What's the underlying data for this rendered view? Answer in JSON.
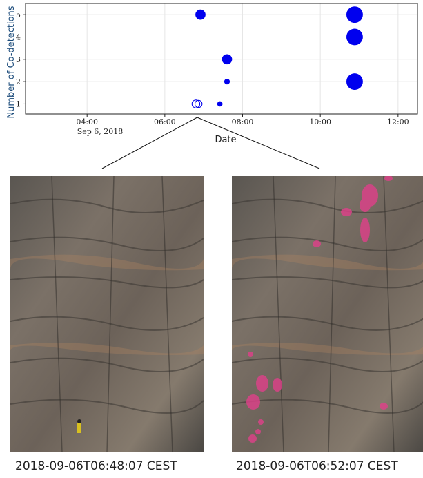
{
  "chart_data": {
    "type": "scatter",
    "xlabel": "Date",
    "ylabel": "Number of Co-detections",
    "x_ticks": [
      "04:00",
      "06:00",
      "08:00",
      "10:00",
      "12:00"
    ],
    "x_date_label": "Sep 6, 2018",
    "y_ticks": [
      "1",
      "2",
      "3",
      "4",
      "5"
    ],
    "xlim": [
      "02:25",
      "12:30"
    ],
    "ylim": [
      0.55,
      5.5
    ],
    "grid": true,
    "marker_color": "#0000ee",
    "points": [
      {
        "x": "06:55",
        "y": 5,
        "size": 1.8
      },
      {
        "x": "07:36",
        "y": 3,
        "size": 1.8
      },
      {
        "x": "07:36",
        "y": 2,
        "size": 0.6
      },
      {
        "x": "06:48",
        "y": 1,
        "size": 1.2,
        "hollow": true
      },
      {
        "x": "06:52",
        "y": 1,
        "size": 1.0,
        "hollow": true
      },
      {
        "x": "07:25",
        "y": 1,
        "size": 0.5
      },
      {
        "x": "10:53",
        "y": 5,
        "size": 3.5
      },
      {
        "x": "10:53",
        "y": 4,
        "size": 3.5
      },
      {
        "x": "10:53",
        "y": 2,
        "size": 3.5
      }
    ],
    "zoom_from_x": "06:50"
  },
  "images": {
    "left": {
      "caption": "2018-09-06T06:48:07 CEST",
      "content": "rock-cliff-with-climber"
    },
    "right": {
      "caption": "2018-09-06T06:52:07 CEST",
      "content": "rock-cliff-with-highlighted-detections",
      "highlight_color": "#e0408a"
    }
  }
}
